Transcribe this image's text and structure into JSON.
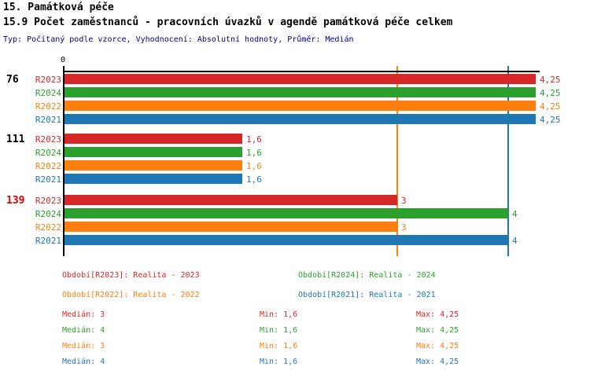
{
  "title": "15. Památková péče",
  "subtitle": "15.9 Počet zaměstnanců - pracovních úvazků v agendě památková péče celkem",
  "meta_line": "Typ: Počítaný podle vzorce, Vyhodnocení: Absolutní hodnoty, Průměr: Medián",
  "colors": {
    "r2023_red": "#d62728",
    "r2024_green": "#2ca02c",
    "r2022_orange": "#ff7f0e",
    "r2021_blue": "#1f77b4",
    "axis_black": "#000000",
    "meta_navy": "#000080",
    "highlight_red": "#dd0000"
  },
  "chart_data": {
    "type": "bar",
    "orientation": "horizontal",
    "axis": {
      "origin_label": "0",
      "min": 0,
      "max": 4.25
    },
    "series": [
      {
        "name": "R2023",
        "color": "#d62728"
      },
      {
        "name": "R2024",
        "color": "#2ca02c"
      },
      {
        "name": "R2022",
        "color": "#ff7f0e"
      },
      {
        "name": "R2021",
        "color": "#1f77b4"
      }
    ],
    "groups": [
      {
        "label": "76",
        "label_color": "#000000",
        "values": [
          4.25,
          4.25,
          4.25,
          4.25
        ],
        "value_labels": [
          "4,25",
          "4,25",
          "4,25",
          "4,25"
        ]
      },
      {
        "label": "111",
        "label_color": "#000000",
        "values": [
          1.6,
          1.6,
          1.6,
          1.6
        ],
        "value_labels": [
          "1,6",
          "1,6",
          "1,6",
          "1,6"
        ]
      },
      {
        "label": "139",
        "label_color": "#dd0000",
        "values": [
          3,
          4,
          3,
          4
        ],
        "value_labels": [
          "3",
          "4",
          "3",
          "4"
        ]
      }
    ],
    "median_lines": [
      {
        "value": 3,
        "color": "#ff7f0e"
      },
      {
        "value": 4,
        "color": "#1f77b4"
      }
    ],
    "legend": [
      {
        "text": "Období[R2023]: Realita - 2023",
        "color": "#d62728"
      },
      {
        "text": "Období[R2024]: Realita - 2024",
        "color": "#2ca02c"
      },
      {
        "text": "Období[R2022]: Realita - 2022",
        "color": "#ff7f0e"
      },
      {
        "text": "Období[R2021]: Realita - 2021",
        "color": "#1f77b4"
      }
    ],
    "stats": [
      {
        "color": "#d62728",
        "median": "Medián: 3",
        "min": "Min: 1,6",
        "max": "Max: 4,25"
      },
      {
        "color": "#2ca02c",
        "median": "Medián: 4",
        "min": "Min: 1,6",
        "max": "Max: 4,25"
      },
      {
        "color": "#ff7f0e",
        "median": "Medián: 3",
        "min": "Min: 1,6",
        "max": "Max: 4,25"
      },
      {
        "color": "#1f77b4",
        "median": "Medián: 4",
        "min": "Min: 1,6",
        "max": "Max: 4,25"
      }
    ]
  }
}
